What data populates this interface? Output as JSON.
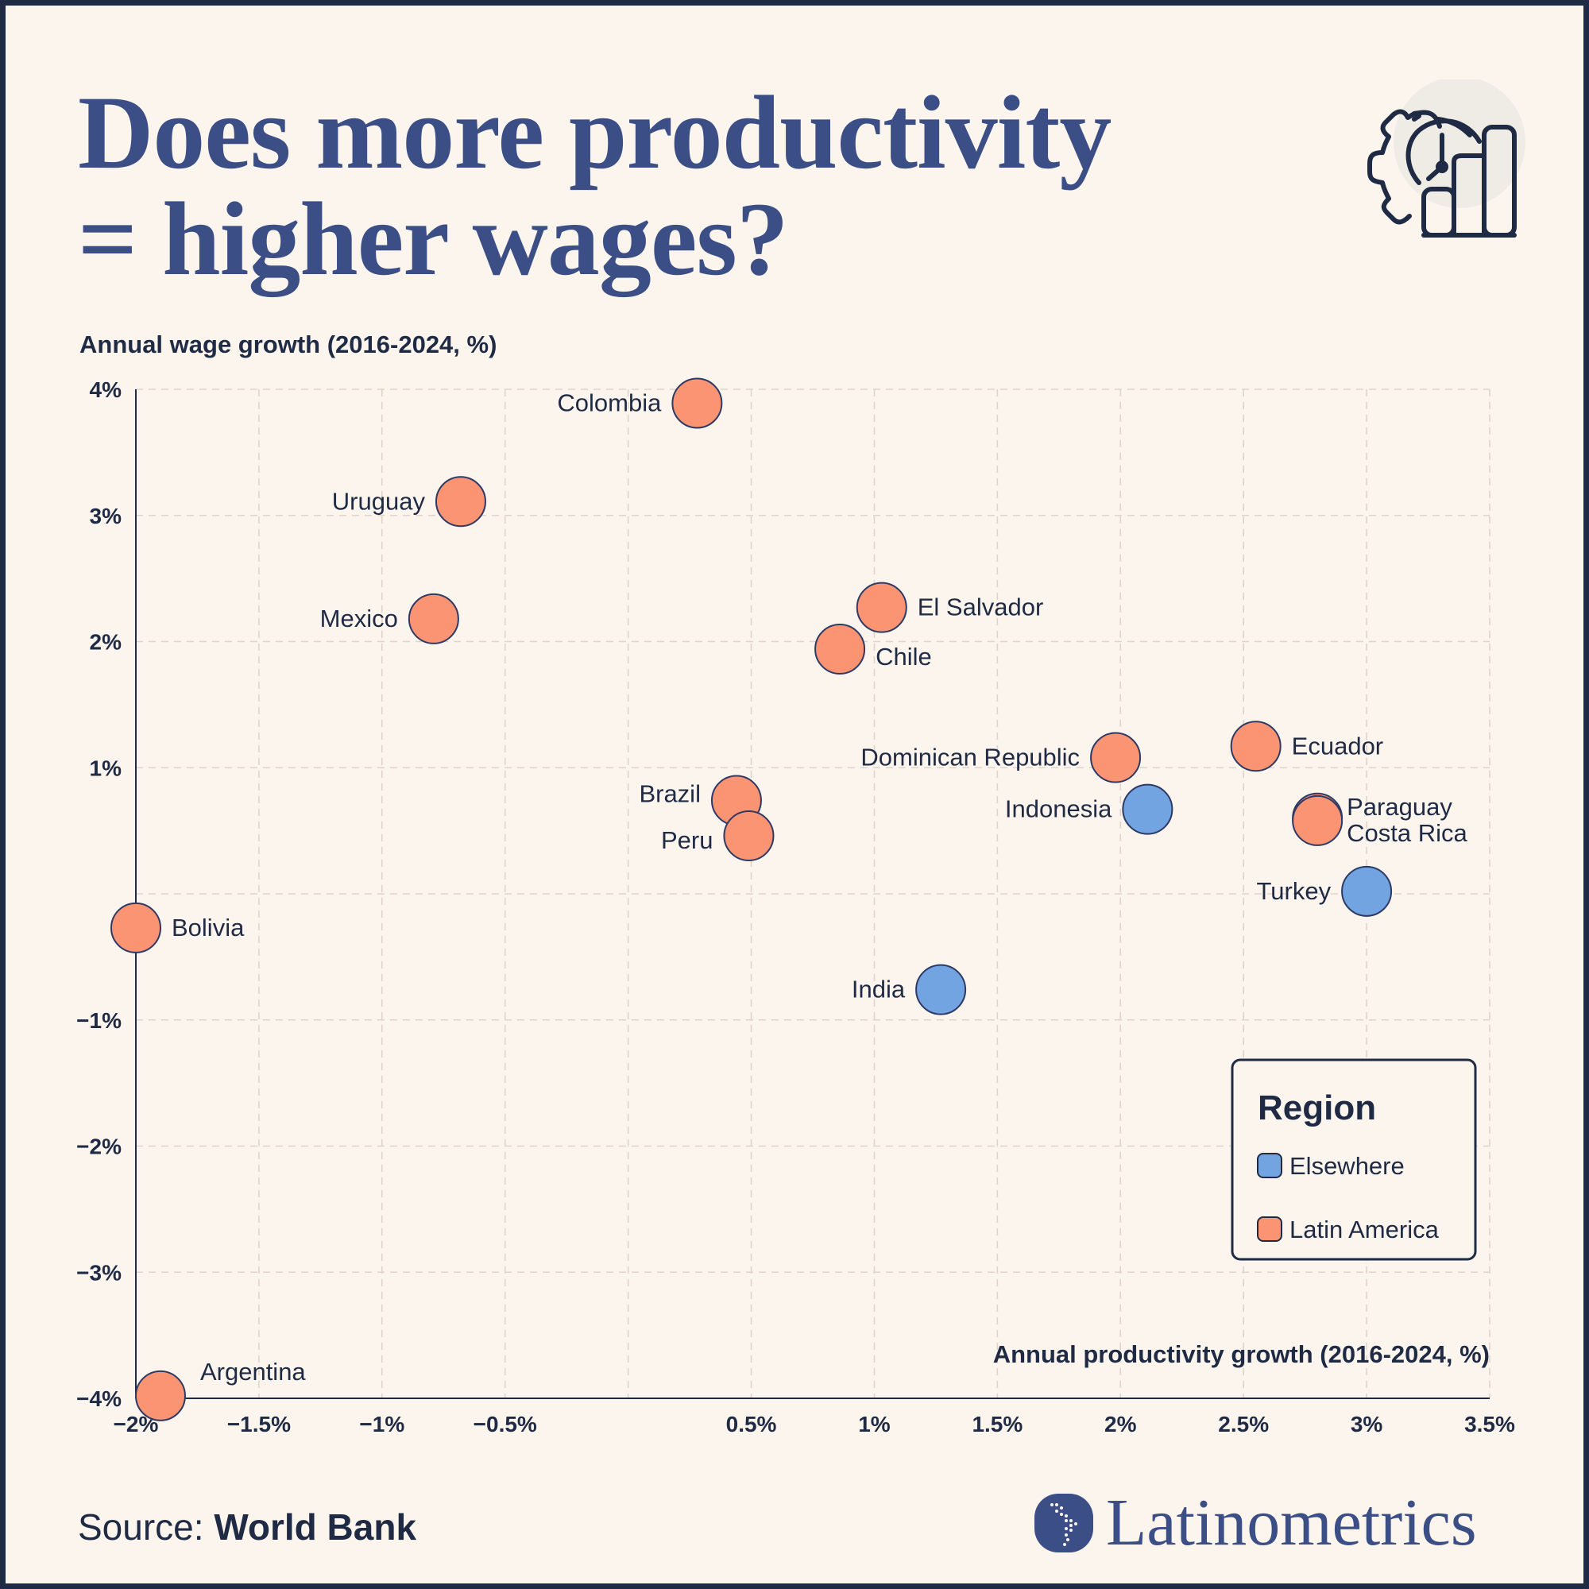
{
  "title_line1": "Does more productivity",
  "title_line2": "= higher wages?",
  "source_label": "Source: ",
  "source_value": "World Bank",
  "brand": "Latinometrics",
  "icon": "gear-clock-bar-chart-icon",
  "colors": {
    "latin_america": "#fb9472",
    "elsewhere": "#72a4e2",
    "ink": "#1f2a44",
    "title": "#3b4f86",
    "background": "#fcf5ee"
  },
  "chart_data": {
    "type": "scatter",
    "title": "Does more productivity = higher wages?",
    "xlabel": "Annual productivity growth (2016-2024, %)",
    "ylabel": "Annual wage growth (2016-2024, %)",
    "xlim": [
      -2,
      3.5
    ],
    "ylim": [
      -4,
      4
    ],
    "xticks": [
      -2,
      -1.5,
      -1,
      -0.5,
      0,
      0.5,
      1,
      1.5,
      2,
      2.5,
      3,
      3.5
    ],
    "xtick_labels": [
      "−2%",
      "−1.5%",
      "−1%",
      "−0.5%",
      "",
      "0.5%",
      "1%",
      "1.5%",
      "2%",
      "2.5%",
      "3%",
      "3.5%"
    ],
    "yticks": [
      -4,
      -3,
      -2,
      -1,
      0,
      1,
      2,
      3,
      4
    ],
    "ytick_labels": [
      "−4%",
      "−3%",
      "−2%",
      "−1%",
      "",
      "1%",
      "2%",
      "3%",
      "4%"
    ],
    "grid": true,
    "legend_placement": "bottom-right",
    "legend_title": "Region",
    "legend": [
      {
        "name": "Elsewhere",
        "color": "#72a4e2"
      },
      {
        "name": "Latin America",
        "color": "#fb9472"
      }
    ],
    "points": [
      {
        "label": "Colombia",
        "x": 0.28,
        "y": 3.89,
        "region": "Latin America"
      },
      {
        "label": "Uruguay",
        "x": -0.68,
        "y": 3.11,
        "region": "Latin America"
      },
      {
        "label": "Mexico",
        "x": -0.79,
        "y": 2.18,
        "region": "Latin America"
      },
      {
        "label": "El Salvador",
        "x": 1.03,
        "y": 2.27,
        "region": "Latin America"
      },
      {
        "label": "Chile",
        "x": 0.86,
        "y": 1.94,
        "region": "Latin America"
      },
      {
        "label": "Dominican Republic",
        "x": 1.98,
        "y": 1.08,
        "region": "Latin America"
      },
      {
        "label": "Ecuador",
        "x": 2.55,
        "y": 1.17,
        "region": "Latin America"
      },
      {
        "label": "Indonesia",
        "x": 2.11,
        "y": 0.67,
        "region": "Elsewhere"
      },
      {
        "label": "Paraguay",
        "x": 2.8,
        "y": 0.6,
        "region": "Latin America"
      },
      {
        "label": "Costa Rica",
        "x": 2.8,
        "y": 0.58,
        "region": "Latin America"
      },
      {
        "label": "Turkey",
        "x": 3.0,
        "y": 0.02,
        "region": "Elsewhere"
      },
      {
        "label": "Brazil",
        "x": 0.44,
        "y": 0.74,
        "region": "Latin America"
      },
      {
        "label": "Peru",
        "x": 0.49,
        "y": 0.46,
        "region": "Latin America"
      },
      {
        "label": "Bolivia",
        "x": -2.0,
        "y": -0.27,
        "region": "Latin America"
      },
      {
        "label": "India",
        "x": 1.27,
        "y": -0.76,
        "region": "Elsewhere"
      },
      {
        "label": "Argentina",
        "x": -1.9,
        "y": -3.98,
        "region": "Latin America"
      }
    ]
  }
}
